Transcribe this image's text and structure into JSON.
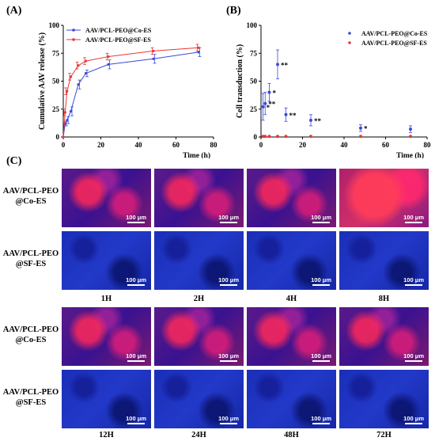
{
  "panel_labels": {
    "a": "(A)",
    "b": "(B)",
    "c": "(C)"
  },
  "scale_bar_text": "100 μm",
  "chart_data": [
    {
      "type": "line",
      "xlabel": "Time (h)",
      "ylabel": "Cumulative AAV release (%)",
      "xlim": [
        0,
        80
      ],
      "ylim": [
        0,
        100
      ],
      "xticks": [
        0,
        20,
        40,
        60,
        80
      ],
      "yticks": [
        0,
        25,
        50,
        75,
        100
      ],
      "grid": false,
      "legend_position": "top-left",
      "series": [
        {
          "name": "AAV/PCL-PEO@Co-ES",
          "color": "#3b4bd6",
          "x": [
            0,
            1,
            2,
            4,
            8,
            12,
            24,
            48,
            72
          ],
          "y": [
            0,
            12,
            15,
            23,
            47,
            57,
            65,
            70,
            76
          ],
          "err": [
            0,
            2,
            3,
            4,
            4,
            3,
            4,
            4,
            4
          ]
        },
        {
          "name": "AAV/PCL-PEO@SF-ES",
          "color": "#e83838",
          "x": [
            0,
            1,
            2,
            4,
            8,
            12,
            24,
            48,
            72
          ],
          "y": [
            0,
            22,
            41,
            54,
            64,
            68,
            72,
            77,
            80
          ],
          "err": [
            0,
            3,
            3,
            3,
            3,
            3,
            3,
            3,
            3
          ]
        }
      ]
    },
    {
      "type": "scatter",
      "xlabel": "Time (h)",
      "ylabel": "Cell transduction (%)",
      "xlim": [
        0,
        80
      ],
      "ylim": [
        0,
        100
      ],
      "xticks": [
        0,
        20,
        40,
        60,
        80
      ],
      "yticks": [
        0,
        25,
        50,
        75,
        100
      ],
      "grid": false,
      "legend_position": "top-right",
      "series": [
        {
          "name": "AAV/PCL-PEO@Co-ES",
          "color": "#3b4bd6",
          "x": [
            1,
            2,
            4,
            8,
            12,
            24,
            48,
            72
          ],
          "y": [
            27,
            30,
            40,
            65,
            20,
            15,
            8,
            7
          ],
          "err": [
            12,
            10,
            8,
            13,
            6,
            5,
            3,
            3
          ]
        },
        {
          "name": "AAV/PCL-PEO@SF-ES",
          "color": "#e83838",
          "x": [
            1,
            2,
            4,
            8,
            12,
            24,
            48,
            72
          ],
          "y": [
            0.5,
            0.5,
            0.5,
            0.5,
            0.5,
            0.5,
            0.5,
            0.5
          ],
          "err": [
            0,
            0,
            0,
            0,
            0,
            0,
            0,
            0
          ]
        }
      ],
      "annotations": [
        "*",
        "**",
        "*",
        "**",
        "**",
        "**",
        "*"
      ]
    }
  ],
  "row_labels": [
    {
      "line1": "AAV/PCL-PEO",
      "line2": "@Co-ES"
    },
    {
      "line1": "AAV/PCL-PEO",
      "line2": "@SF-ES"
    },
    {
      "line1": "AAV/PCL-PEO",
      "line2": "@Co-ES"
    },
    {
      "line1": "AAV/PCL-PEO",
      "line2": "@SF-ES"
    }
  ],
  "time_labels_top": [
    "1H",
    "2H",
    "4H",
    "8H"
  ],
  "time_labels_bottom": [
    "12H",
    "24H",
    "48H",
    "72H"
  ]
}
